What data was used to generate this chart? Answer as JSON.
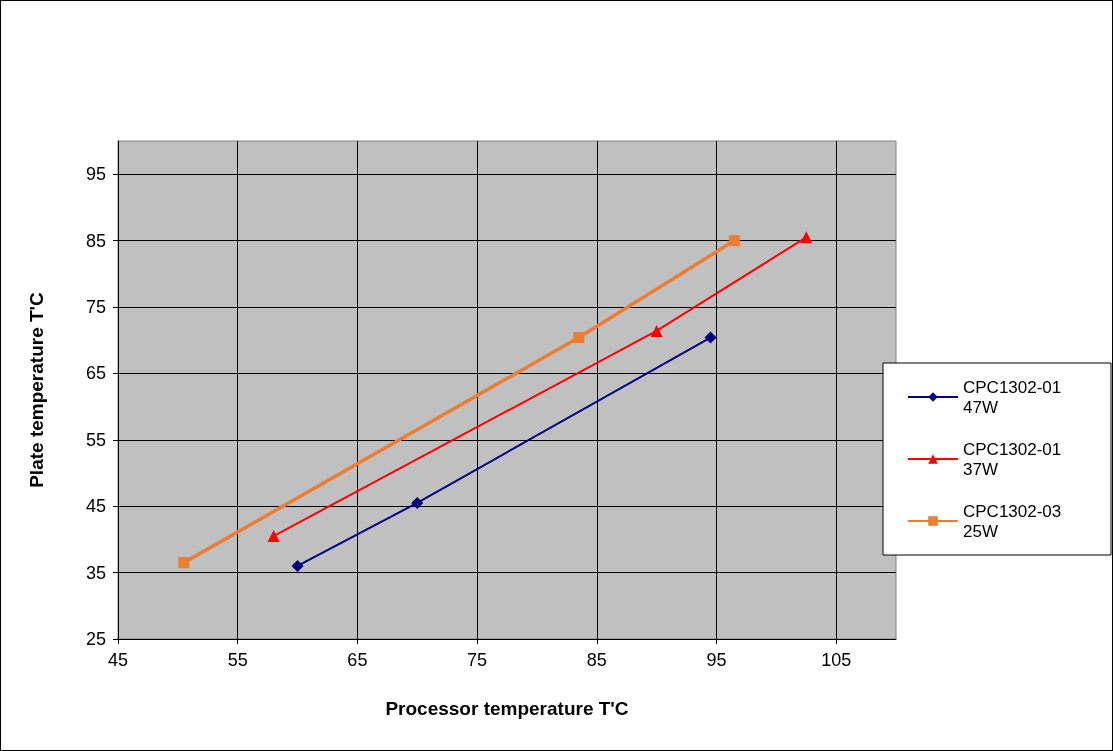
{
  "chart_data": {
    "type": "line",
    "xlabel": "Processor temperature T'C",
    "ylabel": "Plate temperature T'C",
    "series": [
      {
        "name": "CPC1302-01 47W",
        "color": "#000080",
        "marker": "diamond",
        "x": [
          60,
          70,
          94.5
        ],
        "values": [
          36,
          45.5,
          70.4
        ]
      },
      {
        "name": "CPC1302-01 37W",
        "color": "#ff0000",
        "marker": "triangle",
        "x": [
          58,
          90,
          102.5
        ],
        "values": [
          40.5,
          71.4,
          85.5
        ]
      },
      {
        "name": "CPC1302-03 25W",
        "color": "#ed7d31",
        "marker": "square",
        "x": [
          50.5,
          83.5,
          96.5
        ],
        "values": [
          36.5,
          70.4,
          85
        ]
      }
    ],
    "xlim": [
      45,
      110
    ],
    "xticks": [
      45,
      55,
      65,
      75,
      85,
      95,
      105
    ],
    "ylim": [
      25,
      100
    ],
    "yticks": [
      25,
      35,
      45,
      55,
      65,
      75,
      85,
      95
    ],
    "grid": true,
    "legend": "right",
    "line_style": "solid"
  }
}
